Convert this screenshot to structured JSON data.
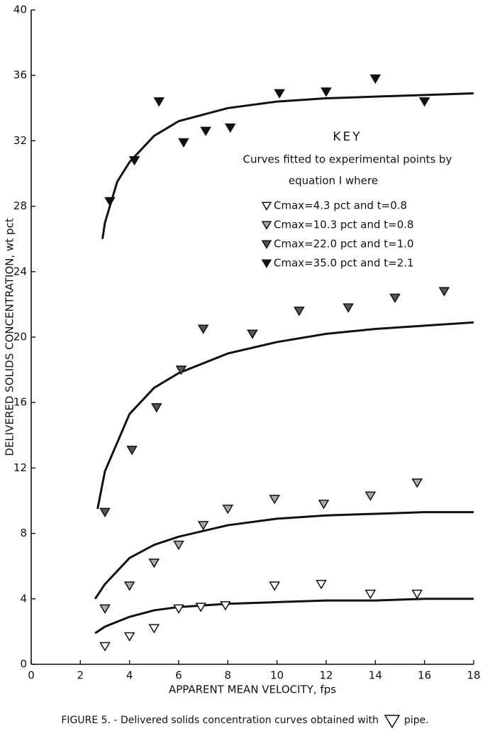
{
  "chart_data": {
    "type": "scatter",
    "x_label": "APPARENT MEAN VELOCITY, fps",
    "y_label": "DELIVERED SOLIDS CONCENTRATION, wt pct",
    "key_title": "KEY",
    "key_text": [
      "Curves fitted to experimental points by",
      "equation I where"
    ],
    "caption": [
      "FIGURE 5. - Delivered solids concentration curves obtained with",
      "pipe."
    ],
    "xlim": [
      0,
      18
    ],
    "xticks": [
      0,
      2,
      4,
      6,
      8,
      10,
      12,
      14,
      16,
      18
    ],
    "ylim": [
      0,
      40
    ],
    "yticks": [
      0,
      4,
      8,
      12,
      16,
      20,
      24,
      28,
      32,
      36,
      40
    ],
    "grid": false,
    "series": [
      {
        "name": "Cmax=4.3 pct and t=0.8",
        "color": "#ffffff",
        "x": [
          3.0,
          4.0,
          5.0,
          6.0,
          6.9,
          7.9,
          9.9,
          11.8,
          13.8,
          15.7
        ],
        "values": [
          1.1,
          1.7,
          2.2,
          3.4,
          3.5,
          3.6,
          4.8,
          4.9,
          4.3,
          4.3
        ],
        "curve_x": [
          2.6,
          3,
          4,
          5,
          6,
          8,
          10,
          12,
          14,
          16,
          18
        ],
        "curve_values": [
          1.9,
          2.3,
          2.9,
          3.3,
          3.5,
          3.7,
          3.8,
          3.9,
          3.9,
          4.0,
          4.0
        ]
      },
      {
        "name": "Cmax=10.3 pct and t=0.8",
        "color": "#aaaaaa",
        "x": [
          3.0,
          4.0,
          5.0,
          6.0,
          7.0,
          8.0,
          9.9,
          11.9,
          13.8,
          15.7
        ],
        "values": [
          3.4,
          4.8,
          6.2,
          7.3,
          8.5,
          9.5,
          10.1,
          9.8,
          10.3,
          11.1
        ],
        "curve_x": [
          2.6,
          3,
          4,
          5,
          6,
          8,
          10,
          12,
          14,
          16,
          18
        ],
        "curve_values": [
          4.0,
          4.9,
          6.5,
          7.3,
          7.8,
          8.5,
          8.9,
          9.1,
          9.2,
          9.3,
          9.3
        ]
      },
      {
        "name": "Cmax=22.0 pct and t=1.0",
        "color": "#555555",
        "x": [
          3.0,
          4.1,
          5.1,
          6.1,
          7.0,
          9.0,
          10.9,
          12.9,
          14.8,
          16.8
        ],
        "values": [
          9.3,
          13.1,
          15.7,
          18.0,
          20.5,
          20.2,
          21.6,
          21.8,
          22.4,
          22.8
        ],
        "curve_x": [
          2.7,
          3,
          4,
          5,
          6,
          8,
          10,
          12,
          14,
          16,
          18
        ],
        "curve_values": [
          9.5,
          11.8,
          15.3,
          16.9,
          17.8,
          19.0,
          19.7,
          20.2,
          20.5,
          20.7,
          20.9
        ]
      },
      {
        "name": "Cmax=35.0 pct and t=2.1",
        "color": "#111111",
        "x": [
          3.2,
          4.2,
          5.2,
          6.2,
          7.1,
          8.1,
          10.1,
          12.0,
          14.0,
          16.0
        ],
        "values": [
          28.3,
          30.8,
          34.4,
          31.9,
          32.6,
          32.8,
          34.9,
          35.0,
          35.8,
          34.4
        ],
        "curve_x": [
          2.9,
          3,
          3.5,
          4,
          5,
          6,
          8,
          10,
          12,
          14,
          16,
          18
        ],
        "curve_values": [
          26.0,
          27.0,
          29.5,
          30.7,
          32.3,
          33.2,
          34.0,
          34.4,
          34.6,
          34.7,
          34.8,
          34.9
        ]
      }
    ]
  }
}
